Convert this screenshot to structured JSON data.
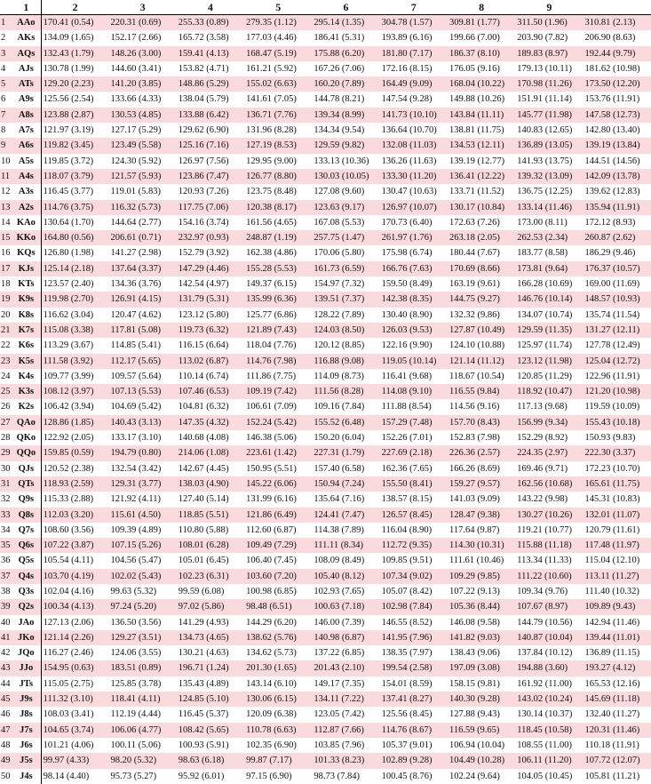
{
  "header": [
    "1",
    "2",
    "3",
    "4",
    "5",
    "6",
    "7",
    "8",
    "9"
  ],
  "rows": [
    {
      "n": "1",
      "hand": "AAo",
      "vals": [
        "170.41 (0.54)",
        "220.31 (0.69)",
        "255.33 (0.89)",
        "279.35 (1.12)",
        "295.14 (1.35)",
        "304.78 (1.57)",
        "309.81 (1.77)",
        "311.50 (1.96)",
        "310.81 (2.13)"
      ]
    },
    {
      "n": "2",
      "hand": "AKs",
      "vals": [
        "134.09 (1.65)",
        "152.17 (2.66)",
        "165.72 (3.58)",
        "177.03 (4.46)",
        "186.41 (5.31)",
        "193.89 (6.16)",
        "199.66 (7.00)",
        "203.90 (7.82)",
        "206.90 (8.63)"
      ]
    },
    {
      "n": "3",
      "hand": "AQs",
      "vals": [
        "132.43 (1.79)",
        "148.26 (3.00)",
        "159.41 (4.13)",
        "168.47 (5.19)",
        "175.88 (6.20)",
        "181.80 (7.17)",
        "186.37 (8.10)",
        "189.83 (8.97)",
        "192.44 (9.79)"
      ]
    },
    {
      "n": "4",
      "hand": "AJs",
      "vals": [
        "130.78 (1.99)",
        "144.60 (3.41)",
        "153.82 (4.71)",
        "161.21 (5.92)",
        "167.26 (7.06)",
        "172.16 (8.15)",
        "176.05 (9.16)",
        "179.13 (10.11)",
        "181.62 (10.98)"
      ]
    },
    {
      "n": "5",
      "hand": "ATs",
      "vals": [
        "129.20 (2.23)",
        "141.20 (3.85)",
        "148.86 (5.29)",
        "155.02 (6.63)",
        "160.20 (7.89)",
        "164.49 (9.09)",
        "168.04 (10.22)",
        "170.98 (11.26)",
        "173.50 (12.20)"
      ]
    },
    {
      "n": "6",
      "hand": "A9s",
      "vals": [
        "125.56 (2.54)",
        "133.66 (4.33)",
        "138.04 (5.79)",
        "141.61 (7.05)",
        "144.78 (8.21)",
        "147.54 (9.28)",
        "149.88 (10.26)",
        "151.91 (11.14)",
        "153.76 (11.91)"
      ]
    },
    {
      "n": "7",
      "hand": "A8s",
      "vals": [
        "123.88 (2.87)",
        "130.53 (4.85)",
        "133.88 (6.42)",
        "136.71 (7.76)",
        "139.34 (8.99)",
        "141.73 (10.10)",
        "143.84 (11.11)",
        "145.77 (11.98)",
        "147.58 (12.73)"
      ]
    },
    {
      "n": "8",
      "hand": "A7s",
      "vals": [
        "121.97 (3.19)",
        "127.17 (5.29)",
        "129.62 (6.90)",
        "131.96 (8.28)",
        "134.34 (9.54)",
        "136.64 (10.70)",
        "138.81 (11.75)",
        "140.83 (12.65)",
        "142.80 (13.40)"
      ]
    },
    {
      "n": "9",
      "hand": "A6s",
      "vals": [
        "119.82 (3.45)",
        "123.49 (5.58)",
        "125.16 (7.16)",
        "127.19 (8.53)",
        "129.59 (9.82)",
        "132.08 (11.03)",
        "134.53 (12.11)",
        "136.89 (13.05)",
        "139.19 (13.84)"
      ]
    },
    {
      "n": "10",
      "hand": "A5s",
      "vals": [
        "119.85 (3.72)",
        "124.30 (5.92)",
        "126.97 (7.56)",
        "129.95 (9.00)",
        "133.13 (10.36)",
        "136.26 (11.63)",
        "139.19 (12.77)",
        "141.93 (13.75)",
        "144.51 (14.56)"
      ]
    },
    {
      "n": "11",
      "hand": "A4s",
      "vals": [
        "118.07 (3.79)",
        "121.57 (5.93)",
        "123.86 (7.47)",
        "126.77 (8.80)",
        "130.03 (10.05)",
        "133.30 (11.20)",
        "136.41 (12.22)",
        "139.32 (13.09)",
        "142.09 (13.78)"
      ]
    },
    {
      "n": "12",
      "hand": "A3s",
      "vals": [
        "116.45 (3.77)",
        "119.01 (5.83)",
        "120.93 (7.26)",
        "123.75 (8.48)",
        "127.08 (9.60)",
        "130.47 (10.63)",
        "133.71 (11.52)",
        "136.75 (12.25)",
        "139.62 (12.83)"
      ]
    },
    {
      "n": "13",
      "hand": "A2s",
      "vals": [
        "114.76 (3.75)",
        "116.32 (5.73)",
        "117.75 (7.06)",
        "120.38 (8.17)",
        "123.63 (9.17)",
        "126.97 (10.07)",
        "130.17 (10.84)",
        "133.14 (11.46)",
        "135.94 (11.91)"
      ]
    },
    {
      "n": "14",
      "hand": "KAo",
      "vals": [
        "130.64 (1.70)",
        "144.64 (2.77)",
        "154.16 (3.74)",
        "161.56 (4.65)",
        "167.08 (5.53)",
        "170.73 (6.40)",
        "172.63 (7.26)",
        "173.00 (8.11)",
        "172.12 (8.93)"
      ]
    },
    {
      "n": "15",
      "hand": "KKo",
      "vals": [
        "164.80 (0.56)",
        "206.61 (0.71)",
        "232.97 (0.93)",
        "248.87 (1.19)",
        "257.75 (1.47)",
        "261.97 (1.76)",
        "263.18 (2.05)",
        "262.53 (2.34)",
        "260.87 (2.62)"
      ]
    },
    {
      "n": "16",
      "hand": "KQs",
      "vals": [
        "126.80 (1.98)",
        "141.27 (2.98)",
        "152.79 (3.92)",
        "162.38 (4.86)",
        "170.06 (5.80)",
        "175.98 (6.74)",
        "180.44 (7.67)",
        "183.77 (8.58)",
        "186.29 (9.46)"
      ]
    },
    {
      "n": "17",
      "hand": "KJs",
      "vals": [
        "125.14 (2.18)",
        "137.64 (3.37)",
        "147.29 (4.46)",
        "155.28 (5.53)",
        "161.73 (6.59)",
        "166.76 (7.63)",
        "170.69 (8.66)",
        "173.81 (9.64)",
        "176.37 (10.57)"
      ]
    },
    {
      "n": "18",
      "hand": "KTs",
      "vals": [
        "123.57 (2.40)",
        "134.36 (3.76)",
        "142.54 (4.97)",
        "149.37 (6.15)",
        "154.97 (7.32)",
        "159.50 (8.49)",
        "163.19 (9.61)",
        "166.28 (10.69)",
        "169.00 (11.69)"
      ]
    },
    {
      "n": "19",
      "hand": "K9s",
      "vals": [
        "119.98 (2.70)",
        "126.91 (4.15)",
        "131.79 (5.31)",
        "135.99 (6.36)",
        "139.51 (7.37)",
        "142.38 (8.35)",
        "144.75 (9.27)",
        "146.76 (10.14)",
        "148.57 (10.93)"
      ]
    },
    {
      "n": "20",
      "hand": "K8s",
      "vals": [
        "116.62 (3.04)",
        "120.47 (4.62)",
        "123.12 (5.80)",
        "125.77 (6.86)",
        "128.22 (7.89)",
        "130.40 (8.90)",
        "132.32 (9.86)",
        "134.07 (10.74)",
        "135.74 (11.54)"
      ]
    },
    {
      "n": "21",
      "hand": "K7s",
      "vals": [
        "115.08 (3.38)",
        "117.81 (5.08)",
        "119.73 (6.32)",
        "121.89 (7.43)",
        "124.03 (8.50)",
        "126.03 (9.53)",
        "127.87 (10.49)",
        "129.59 (11.35)",
        "131.27 (12.11)"
      ]
    },
    {
      "n": "22",
      "hand": "K6s",
      "vals": [
        "113.29 (3.67)",
        "114.85 (5.41)",
        "116.15 (6.64)",
        "118.04 (7.76)",
        "120.12 (8.85)",
        "122.16 (9.90)",
        "124.10 (10.88)",
        "125.97 (11.74)",
        "127.78 (12.49)"
      ]
    },
    {
      "n": "23",
      "hand": "K5s",
      "vals": [
        "111.58 (3.92)",
        "112.17 (5.65)",
        "113.02 (6.87)",
        "114.76 (7.98)",
        "116.88 (9.08)",
        "119.05 (10.14)",
        "121.14 (11.12)",
        "123.12 (11.98)",
        "125.04 (12.72)"
      ]
    },
    {
      "n": "24",
      "hand": "K4s",
      "vals": [
        "109.77 (3.99)",
        "109.57 (5.64)",
        "110.14 (6.74)",
        "111.86 (7.75)",
        "114.09 (8.73)",
        "116.41 (9.68)",
        "118.67 (10.54)",
        "120.85 (11.29)",
        "122.96 (11.91)"
      ]
    },
    {
      "n": "25",
      "hand": "K3s",
      "vals": [
        "108.12 (3.97)",
        "107.13 (5.53)",
        "107.46 (6.53)",
        "109.19 (7.42)",
        "111.56 (8.28)",
        "114.08 (9.10)",
        "116.55 (9.84)",
        "118.92 (10.47)",
        "121.20 (10.98)"
      ]
    },
    {
      "n": "26",
      "hand": "K2s",
      "vals": [
        "106.42 (3.94)",
        "104.69 (5.42)",
        "104.81 (6.32)",
        "106.61 (7.09)",
        "109.16 (7.84)",
        "111.88 (8.54)",
        "114.56 (9.16)",
        "117.13 (9.68)",
        "119.59 (10.09)"
      ]
    },
    {
      "n": "27",
      "hand": "QAo",
      "vals": [
        "128.86 (1.85)",
        "140.43 (3.13)",
        "147.35 (4.32)",
        "152.24 (5.42)",
        "155.52 (6.48)",
        "157.29 (7.48)",
        "157.70 (8.43)",
        "156.99 (9.34)",
        "155.43 (10.18)"
      ]
    },
    {
      "n": "28",
      "hand": "QKo",
      "vals": [
        "122.92 (2.05)",
        "133.17 (3.10)",
        "140.68 (4.08)",
        "146.38 (5.06)",
        "150.20 (6.04)",
        "152.26 (7.01)",
        "152.83 (7.98)",
        "152.29 (8.92)",
        "150.93 (9.83)"
      ]
    },
    {
      "n": "29",
      "hand": "QQo",
      "vals": [
        "159.85 (0.59)",
        "194.79 (0.80)",
        "214.06 (1.08)",
        "223.61 (1.42)",
        "227.31 (1.79)",
        "227.69 (2.18)",
        "226.36 (2.57)",
        "224.35 (2.97)",
        "222.30 (3.37)"
      ]
    },
    {
      "n": "30",
      "hand": "QJs",
      "vals": [
        "120.52 (2.38)",
        "132.54 (3.42)",
        "142.67 (4.45)",
        "150.95 (5.51)",
        "157.40 (6.58)",
        "162.36 (7.65)",
        "166.26 (8.69)",
        "169.46 (9.71)",
        "172.23 (10.70)"
      ]
    },
    {
      "n": "31",
      "hand": "QTs",
      "vals": [
        "118.93 (2.59)",
        "129.31 (3.77)",
        "138.03 (4.90)",
        "145.22 (6.06)",
        "150.94 (7.24)",
        "155.50 (8.41)",
        "159.27 (9.57)",
        "162.56 (10.68)",
        "165.61 (11.75)"
      ]
    },
    {
      "n": "32",
      "hand": "Q9s",
      "vals": [
        "115.33 (2.88)",
        "121.92 (4.11)",
        "127.40 (5.14)",
        "131.99 (6.16)",
        "135.64 (7.16)",
        "138.57 (8.15)",
        "141.03 (9.09)",
        "143.22 (9.98)",
        "145.31 (10.83)"
      ]
    },
    {
      "n": "33",
      "hand": "Q8s",
      "vals": [
        "112.03 (3.20)",
        "115.61 (4.50)",
        "118.85 (5.51)",
        "121.86 (6.49)",
        "124.41 (7.47)",
        "126.57 (8.45)",
        "128.47 (9.38)",
        "130.27 (10.26)",
        "132.01 (11.07)"
      ]
    },
    {
      "n": "34",
      "hand": "Q7s",
      "vals": [
        "108.60 (3.56)",
        "109.39 (4.89)",
        "110.80 (5.88)",
        "112.60 (6.87)",
        "114.38 (7.89)",
        "116.04 (8.90)",
        "117.64 (9.87)",
        "119.21 (10.77)",
        "120.79 (11.61)"
      ]
    },
    {
      "n": "35",
      "hand": "Q6s",
      "vals": [
        "107.22 (3.87)",
        "107.15 (5.26)",
        "108.01 (6.28)",
        "109.49 (7.29)",
        "111.11 (8.34)",
        "112.72 (9.35)",
        "114.30 (10.31)",
        "115.88 (11.18)",
        "117.48 (11.97)"
      ]
    },
    {
      "n": "36",
      "hand": "Q5s",
      "vals": [
        "105.54 (4.11)",
        "104.56 (5.47)",
        "105.01 (6.45)",
        "106.40 (7.45)",
        "108.09 (8.49)",
        "109.85 (9.51)",
        "111.61 (10.46)",
        "113.34 (11.33)",
        "115.04 (12.10)"
      ]
    },
    {
      "n": "37",
      "hand": "Q4s",
      "vals": [
        "103.70 (4.19)",
        "102.02 (5.43)",
        "102.23 (6.31)",
        "103.60 (7.20)",
        "105.40 (8.12)",
        "107.34 (9.02)",
        "109.29 (9.85)",
        "111.22 (10.60)",
        "113.11 (11.27)"
      ]
    },
    {
      "n": "38",
      "hand": "Q3s",
      "vals": [
        "102.04 (4.16)",
        "99.63 (5.32)",
        "99.59 (6.08)",
        "100.98 (6.85)",
        "102.93 (7.65)",
        "105.07 (8.42)",
        "107.22 (9.13)",
        "109.34 (9.76)",
        "111.40 (10.32)"
      ]
    },
    {
      "n": "39",
      "hand": "Q2s",
      "vals": [
        "100.34 (4.13)",
        "97.24 (5.20)",
        "97.02 (5.86)",
        "98.48 (6.51)",
        "100.63 (7.18)",
        "102.98 (7.84)",
        "105.36 (8.44)",
        "107.67 (8.97)",
        "109.89 (9.43)"
      ]
    },
    {
      "n": "40",
      "hand": "JAo",
      "vals": [
        "127.13 (2.06)",
        "136.50 (3.56)",
        "141.29 (4.93)",
        "144.29 (6.20)",
        "146.00 (7.39)",
        "146.55 (8.52)",
        "146.08 (9.58)",
        "144.79 (10.56)",
        "142.94 (11.46)"
      ]
    },
    {
      "n": "41",
      "hand": "JKo",
      "vals": [
        "121.14 (2.26)",
        "129.27 (3.51)",
        "134.73 (4.65)",
        "138.62 (5.76)",
        "140.98 (6.87)",
        "141.95 (7.96)",
        "141.82 (9.03)",
        "140.87 (10.04)",
        "139.44 (11.01)"
      ]
    },
    {
      "n": "42",
      "hand": "JQo",
      "vals": [
        "116.27 (2.46)",
        "124.06 (3.55)",
        "130.21 (4.63)",
        "134.62 (5.73)",
        "137.22 (6.85)",
        "138.35 (7.97)",
        "138.43 (9.06)",
        "137.84 (10.12)",
        "136.89 (11.15)"
      ]
    },
    {
      "n": "43",
      "hand": "JJo",
      "vals": [
        "154.95 (0.63)",
        "183.51 (0.89)",
        "196.71 (1.24)",
        "201.30 (1.65)",
        "201.43 (2.10)",
        "199.54 (2.58)",
        "197.09 (3.08)",
        "194.88 (3.60)",
        "193.27 (4.12)"
      ]
    },
    {
      "n": "44",
      "hand": "JTs",
      "vals": [
        "115.05 (2.75)",
        "125.85 (3.78)",
        "135.43 (4.89)",
        "143.14 (6.10)",
        "149.17 (7.35)",
        "154.01 (8.59)",
        "158.15 (9.81)",
        "161.92 (11.00)",
        "165.53 (12.16)"
      ]
    },
    {
      "n": "45",
      "hand": "J9s",
      "vals": [
        "111.32 (3.10)",
        "118.41 (4.11)",
        "124.85 (5.10)",
        "130.06 (6.15)",
        "134.11 (7.22)",
        "137.41 (8.27)",
        "140.30 (9.28)",
        "143.02 (10.24)",
        "145.69 (11.18)"
      ]
    },
    {
      "n": "46",
      "hand": "J8s",
      "vals": [
        "108.03 (3.41)",
        "112.19 (4.44)",
        "116.45 (5.37)",
        "120.09 (6.38)",
        "123.05 (7.42)",
        "125.56 (8.45)",
        "127.88 (9.43)",
        "130.14 (10.37)",
        "132.40 (11.27)"
      ]
    },
    {
      "n": "47",
      "hand": "J7s",
      "vals": [
        "104.65 (3.74)",
        "106.06 (4.77)",
        "108.42 (5.65)",
        "110.78 (6.63)",
        "112.87 (7.66)",
        "114.76 (8.67)",
        "116.59 (9.65)",
        "118.45 (10.58)",
        "120.31 (11.46)"
      ]
    },
    {
      "n": "48",
      "hand": "J6s",
      "vals": [
        "101.21 (4.06)",
        "100.11 (5.06)",
        "100.93 (5.91)",
        "102.35 (6.90)",
        "103.85 (7.96)",
        "105.37 (9.01)",
        "106.94 (10.04)",
        "108.55 (11.00)",
        "110.18 (11.91)"
      ]
    },
    {
      "n": "49",
      "hand": "J5s",
      "vals": [
        "99.97 (4.33)",
        "98.20 (5.32)",
        "98.63 (6.18)",
        "99.87 (7.17)",
        "101.33 (8.23)",
        "102.89 (9.28)",
        "104.49 (10.28)",
        "106.11 (11.20)",
        "107.72 (12.07)"
      ]
    },
    {
      "n": "50",
      "hand": "J4s",
      "vals": [
        "98.14 (4.40)",
        "95.73 (5.27)",
        "95.92 (6.01)",
        "97.15 (6.90)",
        "98.73 (7.84)",
        "100.45 (8.76)",
        "102.24 (9.64)",
        "104.05 (10.45)",
        "105.81 (11.21)"
      ]
    }
  ]
}
